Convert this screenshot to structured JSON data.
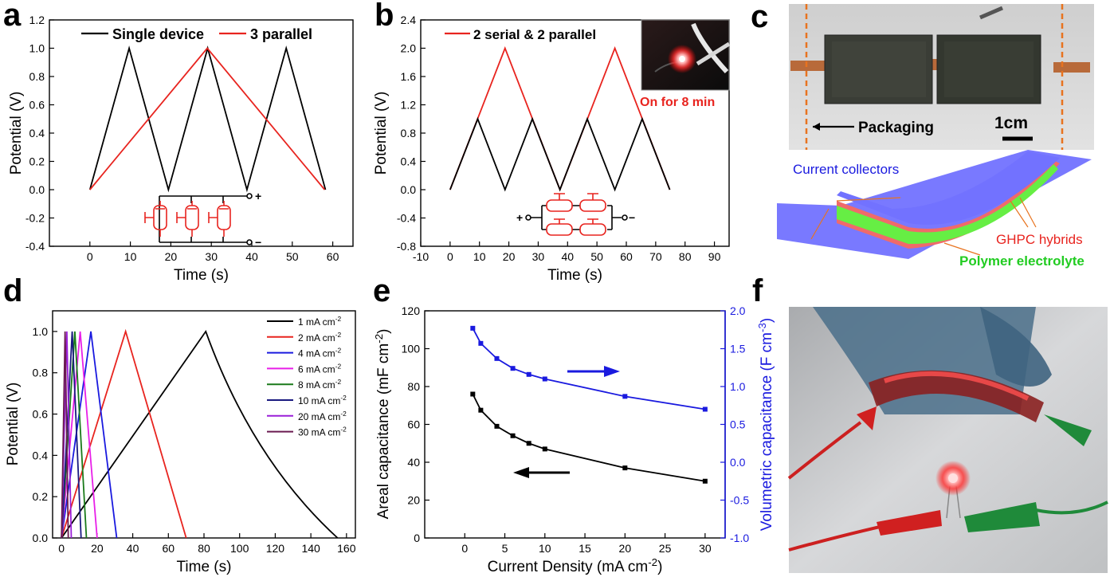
{
  "panel_labels": {
    "a": "a",
    "b": "b",
    "c": "c",
    "d": "d",
    "e": "e",
    "f": "f"
  },
  "colors": {
    "black": "#000000",
    "red": "#e8241f",
    "blue": "#1a1adf",
    "magenta": "#e81fe8",
    "green": "#1a7a1a",
    "navy": "#1a1a80",
    "purple": "#9a1fd8",
    "darkpurple": "#6a1a50",
    "collector": "#6a6aff",
    "hybrid": "#f06a6a",
    "electrolyte": "#66ee44",
    "packaging": "#e8731f"
  },
  "chart_data": [
    {
      "id": "a",
      "type": "line",
      "xlabel": "Time (s)",
      "ylabel": "Potential (V)",
      "xlim": [
        -10,
        65
      ],
      "ylim": [
        -0.4,
        1.2
      ],
      "xticks": [
        0,
        10,
        20,
        30,
        40,
        50,
        60
      ],
      "yticks": [
        -0.4,
        -0.2,
        0.0,
        0.2,
        0.4,
        0.6,
        0.8,
        1.0,
        1.2
      ],
      "ytick_labels": [
        "-0.4",
        "-0.2",
        "0.0",
        "0.2",
        "0.4",
        "0.6",
        "0.8",
        "1.0",
        "1.2"
      ],
      "series": [
        {
          "name": "Single device",
          "color": "#000000",
          "x": [
            0,
            9.7,
            19.4,
            29.1,
            38.8,
            48.5,
            58.2
          ],
          "y": [
            0,
            1,
            0,
            1,
            0,
            1,
            0
          ]
        },
        {
          "name": "3 parallel",
          "color": "#e8241f",
          "x": [
            0,
            29,
            58
          ],
          "y": [
            0,
            1,
            0
          ]
        }
      ],
      "circuit_terminals": [
        "+",
        "−"
      ]
    },
    {
      "id": "b",
      "type": "line",
      "xlabel": "Time (s)",
      "ylabel": "Potential (V)",
      "xlim": [
        -10,
        95
      ],
      "ylim": [
        -0.8,
        2.4
      ],
      "xticks": [
        -10,
        0,
        10,
        20,
        30,
        40,
        50,
        60,
        70,
        80,
        90
      ],
      "yticks": [
        -0.8,
        -0.4,
        0.0,
        0.4,
        0.8,
        1.2,
        1.6,
        2.0,
        2.4
      ],
      "ytick_labels": [
        "-0.8",
        "-0.4",
        "0.0",
        "0.4",
        "0.8",
        "1.2",
        "1.6",
        "2.0",
        "2.4"
      ],
      "series": [
        {
          "name": "2 serial & 2 parallel",
          "color": "#e8241f",
          "x": [
            0,
            18.7,
            37.4,
            56.1,
            74.8
          ],
          "y": [
            0,
            2,
            0,
            2,
            0
          ]
        },
        {
          "name": "",
          "color": "#000000",
          "x": [
            0,
            9.4,
            18.7,
            28,
            37.4,
            46.7,
            56.1,
            65.4,
            74.8
          ],
          "y": [
            0,
            1,
            0,
            1,
            0,
            1,
            0,
            1,
            0
          ]
        }
      ],
      "inset_caption": "On for 8 min",
      "circuit_terminals": [
        "+",
        "−"
      ]
    },
    {
      "id": "d",
      "type": "line",
      "xlabel": "Time (s)",
      "ylabel": "Potential (V)",
      "xlim": [
        -5,
        165
      ],
      "ylim": [
        0,
        1.1
      ],
      "xticks": [
        0,
        20,
        40,
        60,
        80,
        100,
        120,
        140,
        160
      ],
      "yticks": [
        0.0,
        0.2,
        0.4,
        0.6,
        0.8,
        1.0
      ],
      "ytick_labels": [
        "0.0",
        "0.2",
        "0.4",
        "0.6",
        "0.8",
        "1.0"
      ],
      "series": [
        {
          "name": "1 mA cm-2",
          "label": "1 mA cm",
          "sup": "-2",
          "color": "#000000",
          "x": [
            0,
            81,
            155
          ],
          "y": [
            0,
            1,
            0
          ],
          "curved": true
        },
        {
          "name": "2 mA cm-2",
          "label": "2 mA cm",
          "sup": "-2",
          "color": "#e8241f",
          "x": [
            0,
            36,
            70
          ],
          "y": [
            0,
            1,
            0
          ]
        },
        {
          "name": "4 mA cm-2",
          "label": "4 mA cm",
          "sup": "-2",
          "color": "#1a1adf",
          "x": [
            0,
            16.5,
            31
          ],
          "y": [
            0,
            1,
            0
          ]
        },
        {
          "name": "6 mA cm-2",
          "label": "6 mA cm",
          "sup": "-2",
          "color": "#e81fe8",
          "x": [
            0,
            10.5,
            20
          ],
          "y": [
            0,
            1,
            0
          ]
        },
        {
          "name": "8 mA cm-2",
          "label": "8 mA cm",
          "sup": "-2",
          "color": "#1a7a1a",
          "x": [
            0,
            7.5,
            14
          ],
          "y": [
            0,
            1,
            0
          ]
        },
        {
          "name": "10 mA cm-2",
          "label": "10 mA cm",
          "sup": "-2",
          "color": "#1a1a80",
          "x": [
            0,
            6,
            11
          ],
          "y": [
            0,
            1,
            0
          ]
        },
        {
          "name": "20 mA cm-2",
          "label": "20 mA cm",
          "sup": "-2",
          "color": "#9a1fd8",
          "x": [
            0,
            3,
            5.5
          ],
          "y": [
            0,
            1,
            0
          ]
        },
        {
          "name": "30 mA cm-2",
          "label": "30 mA cm",
          "sup": "-2",
          "color": "#6a1a50",
          "x": [
            0,
            2,
            3.8
          ],
          "y": [
            0,
            1,
            0
          ]
        }
      ]
    },
    {
      "id": "e",
      "type": "line",
      "xlabel": "Current Density (mA cm",
      "xlabel_sup": "-2",
      "xlabel_end": ")",
      "ylabel": "Areal capacitance (mF cm",
      "ylabel_sup": "-2",
      "ylabel_end": ")",
      "y2label": "Volumetric capacitance (F cm",
      "y2label_sup": "-3",
      "y2label_end": ")",
      "xlim": [
        -5,
        32.5
      ],
      "ylim": [
        0,
        120
      ],
      "y2lim": [
        -1.0,
        2.0
      ],
      "xticks": [
        0,
        5,
        10,
        15,
        20,
        25,
        30
      ],
      "yticks": [
        0,
        20,
        40,
        60,
        80,
        100,
        120
      ],
      "y2ticks": [
        -1.0,
        -0.5,
        0.0,
        0.5,
        1.0,
        1.5,
        2.0
      ],
      "y2tick_labels": [
        "-1.0",
        "-0.5",
        "0.0",
        "0.5",
        "1.0",
        "1.5",
        "2.0"
      ],
      "series": [
        {
          "name": "Areal",
          "axis": "left",
          "color": "#000000",
          "x": [
            1,
            2,
            4,
            6,
            8,
            10,
            20,
            30
          ],
          "y": [
            76,
            67.5,
            59,
            54,
            50,
            47,
            37,
            30
          ]
        },
        {
          "name": "Volumetric",
          "axis": "right",
          "color": "#1a1adf",
          "x": [
            1,
            2,
            4,
            6,
            8,
            10,
            20,
            30
          ],
          "y": [
            1.77,
            1.57,
            1.37,
            1.24,
            1.16,
            1.1,
            0.87,
            0.7
          ]
        }
      ]
    }
  ],
  "panel_c": {
    "packaging_label": "Packaging",
    "scale_label": "1cm",
    "labels": [
      "Current collectors",
      "GHPC hybrids",
      "Polymer electrolyte"
    ]
  },
  "panel_f": {
    "description_free": ""
  }
}
